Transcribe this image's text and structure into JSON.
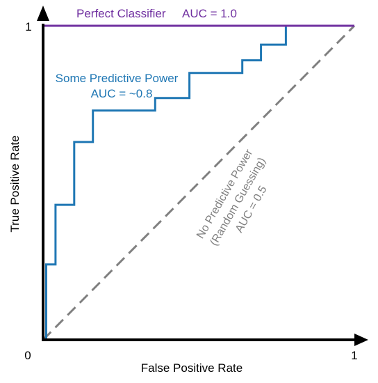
{
  "chart_data": {
    "type": "line",
    "xlabel": "False Positive Rate",
    "ylabel": "True Positive Rate",
    "xlim": [
      0,
      1
    ],
    "ylim": [
      0,
      1
    ],
    "x_ticks": [
      "0",
      "1"
    ],
    "y_ticks": [
      "1"
    ],
    "grid": false,
    "series": [
      {
        "name": "Perfect Classifier",
        "auc_label": "AUC = 1.0",
        "color": "#7030a0",
        "style": "solid",
        "x": [
          0,
          0,
          1
        ],
        "y": [
          0,
          1,
          1
        ]
      },
      {
        "name": "Some Predictive Power",
        "auc_label": "AUC = ~0.8",
        "color": "#1f77b4",
        "style": "solid",
        "x": [
          0,
          0.01,
          0.01,
          0.04,
          0.04,
          0.1,
          0.1,
          0.16,
          0.16,
          0.36,
          0.36,
          0.47,
          0.47,
          0.64,
          0.64,
          0.7,
          0.7,
          0.78,
          0.78,
          1.0
        ],
        "y": [
          0,
          0,
          0.24,
          0.24,
          0.43,
          0.43,
          0.63,
          0.63,
          0.73,
          0.73,
          0.77,
          0.77,
          0.85,
          0.85,
          0.89,
          0.89,
          0.94,
          0.94,
          1.0,
          1.0
        ]
      },
      {
        "name": "No Predictive Power",
        "subtitle": "(Random Guessing)",
        "auc_label": "AUC = 0.5",
        "color": "#808080",
        "style": "dashed",
        "x": [
          0,
          1
        ],
        "y": [
          0,
          1
        ]
      }
    ]
  }
}
